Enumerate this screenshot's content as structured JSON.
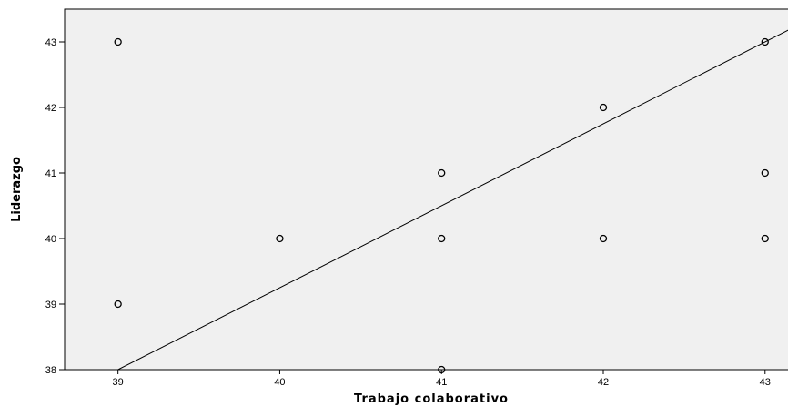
{
  "chart_data": {
    "type": "scatter",
    "title": "",
    "xlabel": "Trabajo colaborativo",
    "ylabel": "Liderazgo",
    "xlim": [
      38.67,
      43.17
    ],
    "ylim": [
      38,
      43.5
    ],
    "xticks": [
      39,
      40,
      41,
      42,
      43
    ],
    "yticks": [
      38,
      39,
      40,
      41,
      42,
      43
    ],
    "grid": false,
    "legend": "none",
    "plot_background": "#f0f0f0",
    "marker_color": "#000000",
    "points": [
      {
        "x": 39,
        "y": 43
      },
      {
        "x": 39,
        "y": 39
      },
      {
        "x": 40,
        "y": 40
      },
      {
        "x": 41,
        "y": 41
      },
      {
        "x": 41,
        "y": 40
      },
      {
        "x": 41,
        "y": 38
      },
      {
        "x": 42,
        "y": 42
      },
      {
        "x": 42,
        "y": 40
      },
      {
        "x": 43,
        "y": 43
      },
      {
        "x": 43,
        "y": 41
      },
      {
        "x": 43,
        "y": 40
      }
    ],
    "fit_line": {
      "x": [
        39,
        43
      ],
      "y": [
        38,
        43
      ]
    }
  }
}
